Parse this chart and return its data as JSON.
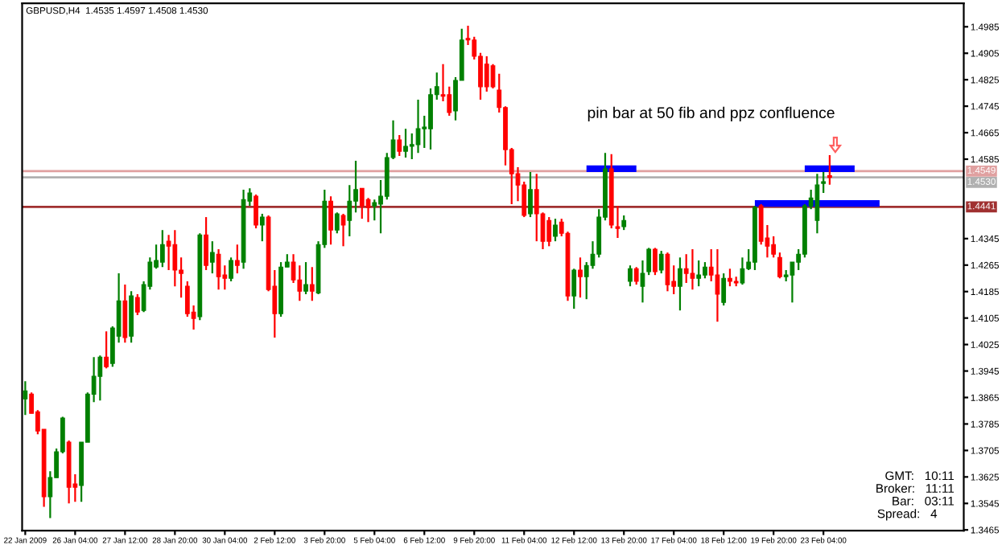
{
  "chart_data": {
    "type": "candlestick",
    "title": "GBPUSD,H4  1.4535 1.4597 1.4508 1.4530",
    "annotations": [
      "pin bar at 50 fib and ppz confluence",
      "GMT:   10:11",
      "Broker:   11:11",
      "Bar:   03:11",
      "Spread:   4     "
    ],
    "categories": [
      "22 Jan 2009",
      null,
      null,
      null,
      null,
      null,
      null,
      null,
      "26 Jan 04:00",
      null,
      null,
      null,
      null,
      null,
      null,
      null,
      "27 Jan 12:00",
      null,
      null,
      null,
      null,
      null,
      null,
      null,
      "28 Jan 20:00",
      null,
      null,
      null,
      null,
      null,
      null,
      null,
      "30 Jan 04:00",
      null,
      null,
      null,
      null,
      null,
      null,
      null,
      "2 Feb 12:00",
      null,
      null,
      null,
      null,
      null,
      null,
      null,
      "3 Feb 20:00",
      null,
      null,
      null,
      null,
      null,
      null,
      null,
      "5 Feb 04:00",
      null,
      null,
      null,
      null,
      null,
      null,
      null,
      "6 Feb 12:00",
      null,
      null,
      null,
      null,
      null,
      null,
      null,
      "9 Feb 20:00",
      null,
      null,
      null,
      null,
      null,
      null,
      null,
      "11 Feb 04:00",
      null,
      null,
      null,
      null,
      null,
      null,
      null,
      "12 Feb 12:00",
      null,
      null,
      null,
      null,
      null,
      null,
      null,
      "13 Feb 20:00",
      null,
      null,
      null,
      null,
      null,
      null,
      null,
      "17 Feb 04:00",
      null,
      null,
      null,
      null,
      null,
      null,
      null,
      "18 Feb 12:00",
      null,
      null,
      null,
      null,
      null,
      null,
      null,
      "19 Feb 20:00",
      null,
      null,
      null,
      null,
      null,
      null,
      null,
      "23 Feb 04:00",
      null,
      null,
      null,
      null,
      null,
      null,
      null,
      null,
      null,
      null,
      null,
      null,
      null,
      null,
      null,
      null,
      null,
      null,
      null,
      null,
      null,
      null
    ],
    "ohlc": [
      [
        1.3861,
        1.3914,
        1.3812,
        1.3885
      ],
      [
        1.3875,
        1.388,
        1.3817,
        1.3817
      ],
      [
        1.3822,
        1.3827,
        1.3754,
        1.3764
      ],
      [
        1.3769,
        1.3769,
        1.3535,
        1.3565
      ],
      [
        1.3565,
        1.3642,
        1.3501,
        1.3623
      ],
      [
        1.3623,
        1.3711,
        1.3623,
        1.3701
      ],
      [
        1.3701,
        1.3807,
        1.3696,
        1.3803
      ],
      [
        1.373,
        1.3735,
        1.3545,
        1.3594
      ],
      [
        1.3604,
        1.3633,
        1.355,
        1.3594
      ],
      [
        1.3599,
        1.373,
        1.355,
        1.373
      ],
      [
        1.373,
        1.388,
        1.373,
        1.3875
      ],
      [
        1.3875,
        1.3987,
        1.3851,
        1.3929
      ],
      [
        1.3929,
        1.3992,
        1.3856,
        1.3987
      ],
      [
        1.3987,
        1.4065,
        1.3953,
        1.3958
      ],
      [
        1.3968,
        1.408,
        1.3958,
        1.4075
      ],
      [
        1.405,
        1.424,
        1.4031,
        1.4157
      ],
      [
        1.4157,
        1.4206,
        1.4031,
        1.4046
      ],
      [
        1.405,
        1.4186,
        1.4031,
        1.4172
      ],
      [
        1.4167,
        1.4177,
        1.4114,
        1.4123
      ],
      [
        1.4128,
        1.4216,
        1.4123,
        1.4206
      ],
      [
        1.4201,
        1.4288,
        1.4191,
        1.4274
      ],
      [
        1.4259,
        1.4327,
        1.4254,
        1.4279
      ],
      [
        1.4274,
        1.4371,
        1.4259,
        1.4327
      ],
      [
        1.4337,
        1.4356,
        1.425,
        1.4322
      ],
      [
        1.4327,
        1.4371,
        1.4201,
        1.425
      ],
      [
        1.425,
        1.4288,
        1.4167,
        1.424
      ],
      [
        1.4201,
        1.4216,
        1.4109,
        1.4118
      ],
      [
        1.4123,
        1.4143,
        1.407,
        1.4104
      ],
      [
        1.4109,
        1.4361,
        1.4099,
        1.4356
      ],
      [
        1.4356,
        1.441,
        1.425,
        1.4264
      ],
      [
        1.4274,
        1.4337,
        1.424,
        1.4303
      ],
      [
        1.4298,
        1.4313,
        1.4191,
        1.423
      ],
      [
        1.4235,
        1.4264,
        1.4191,
        1.4225
      ],
      [
        1.4225,
        1.4288,
        1.4216,
        1.4279
      ],
      [
        1.4279,
        1.4327,
        1.424,
        1.4264
      ],
      [
        1.4274,
        1.4493,
        1.4254,
        1.4463
      ],
      [
        1.4458,
        1.4497,
        1.4444,
        1.4483
      ],
      [
        1.4473,
        1.4478,
        1.4376,
        1.4386
      ],
      [
        1.4386,
        1.442,
        1.4337,
        1.441
      ],
      [
        1.441,
        1.4415,
        1.4186,
        1.4191
      ],
      [
        1.4201,
        1.425,
        1.4046,
        1.4118
      ],
      [
        1.4118,
        1.4274,
        1.4109,
        1.4259
      ],
      [
        1.4259,
        1.4298,
        1.4259,
        1.4274
      ],
      [
        1.4274,
        1.4298,
        1.4211,
        1.422
      ],
      [
        1.422,
        1.4264,
        1.4157,
        1.4186
      ],
      [
        1.4186,
        1.4274,
        1.4177,
        1.4206
      ],
      [
        1.4206,
        1.4259,
        1.4157,
        1.4186
      ],
      [
        1.4181,
        1.4337,
        1.4177,
        1.4327
      ],
      [
        1.4327,
        1.4493,
        1.4317,
        1.4458
      ],
      [
        1.4458,
        1.4473,
        1.4327,
        1.4371
      ],
      [
        1.4371,
        1.4424,
        1.4361,
        1.442
      ],
      [
        1.4415,
        1.442,
        1.4322,
        1.4386
      ],
      [
        1.44,
        1.4507,
        1.4352,
        1.4458
      ],
      [
        1.4458,
        1.458,
        1.4424,
        1.4493
      ],
      [
        1.4497,
        1.4497,
        1.4405,
        1.4444
      ],
      [
        1.4463,
        1.4468,
        1.4395,
        1.4439
      ],
      [
        1.4444,
        1.4463,
        1.44,
        1.4454
      ],
      [
        1.4449,
        1.4522,
        1.4361,
        1.4473
      ],
      [
        1.4473,
        1.4604,
        1.4463,
        1.459
      ],
      [
        1.459,
        1.4702,
        1.4585,
        1.4643
      ],
      [
        1.4643,
        1.4658,
        1.4595,
        1.4609
      ],
      [
        1.4609,
        1.4677,
        1.459,
        1.4624
      ],
      [
        1.4624,
        1.4663,
        1.4585,
        1.4629
      ],
      [
        1.4629,
        1.4765,
        1.4604,
        1.4677
      ],
      [
        1.4677,
        1.4716,
        1.4619,
        1.4682
      ],
      [
        1.4677,
        1.4799,
        1.4614,
        1.478
      ],
      [
        1.478,
        1.4847,
        1.4765,
        1.4804
      ],
      [
        1.478,
        1.4872,
        1.476,
        1.4775
      ],
      [
        1.478,
        1.4804,
        1.4716,
        1.4726
      ],
      [
        1.4731,
        1.4833,
        1.4702,
        1.4823
      ],
      [
        1.4823,
        1.4979,
        1.4823,
        1.4945
      ],
      [
        1.495,
        1.4988,
        1.493,
        1.4945
      ],
      [
        1.4945,
        1.4955,
        1.4886,
        1.4896
      ],
      [
        1.4896,
        1.4906,
        1.4765,
        1.4804
      ],
      [
        1.4872,
        1.4896,
        1.4789,
        1.4804
      ],
      [
        1.4867,
        1.4872,
        1.4799,
        1.4804
      ],
      [
        1.4794,
        1.4843,
        1.4726,
        1.4741
      ],
      [
        1.4741,
        1.4745,
        1.4566,
        1.4614
      ],
      [
        1.4614,
        1.4619,
        1.4449,
        1.4541
      ],
      [
        1.4541,
        1.4561,
        1.4458,
        1.4507
      ],
      [
        1.4507,
        1.4517,
        1.441,
        1.4415
      ],
      [
        1.442,
        1.4546,
        1.441,
        1.4493
      ],
      [
        1.4493,
        1.4541,
        1.4337,
        1.442
      ],
      [
        1.442,
        1.4424,
        1.4313,
        1.4337
      ],
      [
        1.44,
        1.441,
        1.4322,
        1.4337
      ],
      [
        1.4352,
        1.4405,
        1.4337,
        1.4386
      ],
      [
        1.4395,
        1.4405,
        1.4352,
        1.4361
      ],
      [
        1.4361,
        1.4366,
        1.4157,
        1.4172
      ],
      [
        1.4172,
        1.4254,
        1.4133,
        1.425
      ],
      [
        1.425,
        1.4288,
        1.4167,
        1.423
      ],
      [
        1.423,
        1.4274,
        1.4162,
        1.4264
      ],
      [
        1.4264,
        1.4337,
        1.4254,
        1.4298
      ],
      [
        1.4298,
        1.4434,
        1.4288,
        1.441
      ],
      [
        1.441,
        1.4604,
        1.44,
        1.4556
      ],
      [
        1.4556,
        1.46,
        1.4376,
        1.4386
      ],
      [
        1.4381,
        1.4444,
        1.4347,
        1.4376
      ],
      [
        1.4381,
        1.4415,
        1.4371,
        1.44
      ],
      [
        1.4216,
        1.4264,
        1.4201,
        1.4254
      ],
      [
        1.4254,
        1.4259,
        1.4206,
        1.4216
      ],
      [
        1.4201,
        1.4279,
        1.4152,
        1.424
      ],
      [
        1.4245,
        1.4317,
        1.4235,
        1.4313
      ],
      [
        1.4313,
        1.4317,
        1.4235,
        1.4245
      ],
      [
        1.425,
        1.4308,
        1.424,
        1.4298
      ],
      [
        1.4298,
        1.4303,
        1.4186,
        1.4206
      ],
      [
        1.4216,
        1.4264,
        1.4177,
        1.4201
      ],
      [
        1.4201,
        1.4288,
        1.4128,
        1.4254
      ],
      [
        1.4254,
        1.4298,
        1.4211,
        1.424
      ],
      [
        1.424,
        1.4313,
        1.4191,
        1.4225
      ],
      [
        1.4225,
        1.4279,
        1.4201,
        1.4235
      ],
      [
        1.4235,
        1.4274,
        1.4225,
        1.4259
      ],
      [
        1.4259,
        1.4313,
        1.4216,
        1.4235
      ],
      [
        1.4235,
        1.4313,
        1.4094,
        1.4177
      ],
      [
        1.4152,
        1.424,
        1.4143,
        1.4225
      ],
      [
        1.4225,
        1.4254,
        1.4201,
        1.4216
      ],
      [
        1.4216,
        1.423,
        1.4201,
        1.4211
      ],
      [
        1.4211,
        1.4288,
        1.4206,
        1.4254
      ],
      [
        1.4254,
        1.4313,
        1.425,
        1.4274
      ],
      [
        1.4274,
        1.4444,
        1.425,
        1.4439
      ],
      [
        1.4444,
        1.4449,
        1.4327,
        1.4337
      ],
      [
        1.4347,
        1.4386,
        1.4288,
        1.4322
      ],
      [
        1.4327,
        1.4352,
        1.4288,
        1.4298
      ],
      [
        1.4288,
        1.4303,
        1.4225,
        1.423
      ],
      [
        1.423,
        1.425,
        1.4216,
        1.4235
      ],
      [
        1.4235,
        1.4274,
        1.4152,
        1.4274
      ],
      [
        1.4274,
        1.4313,
        1.425,
        1.4298
      ],
      [
        1.4298,
        1.4449,
        1.4288,
        1.4444
      ],
      [
        1.4444,
        1.4493,
        1.4434,
        1.4468
      ],
      [
        1.44,
        1.4541,
        1.4361,
        1.4507
      ],
      [
        1.4512,
        1.4546,
        1.4483,
        1.4517
      ],
      [
        1.4535,
        1.4597,
        1.4508,
        1.453
      ],
      null,
      null,
      null,
      null,
      null,
      null,
      null,
      null,
      null,
      null,
      null,
      null,
      null,
      null,
      null,
      null,
      null,
      null,
      null,
      null,
      null
    ],
    "colors": [
      "#008000",
      "#ff0000",
      "#ff0000",
      "#ff0000",
      "#008000",
      "#008000",
      "#008000",
      "#ff0000",
      "#ff0000",
      "#008000",
      "#008000",
      "#008000",
      "#008000",
      "#ff0000",
      "#008000",
      "#008000",
      "#ff0000",
      "#008000",
      "#ff0000",
      "#008000",
      "#008000",
      "#008000",
      "#008000",
      "#ff0000",
      "#ff0000",
      "#ff0000",
      "#ff0000",
      "#ff0000",
      "#008000",
      "#ff0000",
      "#008000",
      "#ff0000",
      "#ff0000",
      "#008000",
      "#ff0000",
      "#008000",
      "#008000",
      "#ff0000",
      "#008000",
      "#ff0000",
      "#ff0000",
      "#008000",
      "#008000",
      "#ff0000",
      "#ff0000",
      "#008000",
      "#ff0000",
      "#008000",
      "#008000",
      "#ff0000",
      "#008000",
      "#ff0000",
      "#008000",
      "#008000",
      "#ff0000",
      "#ff0000",
      "#008000",
      "#008000",
      "#008000",
      "#008000",
      "#ff0000",
      "#008000",
      "#008000",
      "#008000",
      "#008000",
      "#008000",
      "#008000",
      "#ff0000",
      "#ff0000",
      "#008000",
      "#008000",
      "#ff0000",
      "#ff0000",
      "#ff0000",
      "#ff0000",
      "#ff0000",
      "#ff0000",
      "#ff0000",
      "#ff0000",
      "#ff0000",
      "#ff0000",
      "#008000",
      "#ff0000",
      "#ff0000",
      "#ff0000",
      "#008000",
      "#ff0000",
      "#ff0000",
      "#008000",
      "#ff0000",
      "#008000",
      "#008000",
      "#008000",
      "#008000",
      "#ff0000",
      "#ff0000",
      "#008000",
      "#008000",
      "#ff0000",
      "#008000",
      "#008000",
      "#ff0000",
      "#008000",
      "#ff0000",
      "#ff0000",
      "#008000",
      "#ff0000",
      "#ff0000",
      "#008000",
      "#008000",
      "#ff0000",
      "#ff0000",
      "#008000",
      "#ff0000",
      "#ff0000",
      "#008000",
      "#008000",
      "#008000",
      "#ff0000",
      "#ff0000",
      "#ff0000",
      "#ff0000",
      "#008000",
      "#008000",
      "#008000",
      "#008000",
      "#008000",
      "#008000",
      "#008000",
      "#ff0000",
      null,
      null,
      null,
      null,
      null,
      null,
      null,
      null,
      null,
      null,
      null,
      null,
      null,
      null,
      null,
      null,
      null,
      null,
      null,
      null,
      null
    ],
    "series": [
      {
        "type": "line",
        "color": "#0000ff",
        "values": [
          null,
          null,
          null,
          null,
          null,
          null,
          null,
          null,
          null,
          null,
          null,
          null,
          null,
          null,
          null,
          null,
          null,
          null,
          null,
          null,
          null,
          null,
          null,
          null,
          null,
          null,
          null,
          null,
          null,
          null,
          null,
          null,
          null,
          null,
          null,
          null,
          null,
          null,
          null,
          null,
          null,
          null,
          null,
          null,
          null,
          null,
          null,
          null,
          null,
          null,
          null,
          null,
          null,
          null,
          null,
          null,
          null,
          null,
          null,
          null,
          null,
          null,
          null,
          null,
          null,
          null,
          null,
          null,
          null,
          null,
          null,
          null,
          null,
          null,
          null,
          null,
          null,
          null,
          null,
          null,
          null,
          null,
          null,
          null,
          null,
          null,
          null,
          null,
          null,
          null,
          1.4556,
          1.4556,
          1.4556,
          1.4556,
          1.4556,
          1.4556,
          1.4556,
          1.4556,
          1.4556,
          null,
          null,
          null,
          null,
          null,
          null,
          null,
          null,
          null,
          null,
          null,
          null,
          null,
          null,
          null,
          null,
          null,
          null,
          null,
          null,
          null,
          null,
          null,
          null,
          null,
          null,
          null,
          null,
          null,
          null,
          null,
          null,
          null,
          null,
          null,
          null,
          null,
          null,
          null,
          null,
          null,
          null,
          null,
          null,
          null,
          null,
          null,
          null,
          null,
          null,
          null,
          null
        ]
      },
      {
        "type": "line",
        "color": "#0000ff",
        "values": [
          null,
          null,
          null,
          null,
          null,
          null,
          null,
          null,
          null,
          null,
          null,
          null,
          null,
          null,
          null,
          null,
          null,
          null,
          null,
          null,
          null,
          null,
          null,
          null,
          null,
          null,
          null,
          null,
          null,
          null,
          null,
          null,
          null,
          null,
          null,
          null,
          null,
          null,
          null,
          null,
          null,
          null,
          null,
          null,
          null,
          null,
          null,
          null,
          null,
          null,
          null,
          null,
          null,
          null,
          null,
          null,
          null,
          null,
          null,
          null,
          null,
          null,
          null,
          null,
          null,
          null,
          null,
          null,
          null,
          null,
          null,
          null,
          null,
          null,
          null,
          null,
          null,
          null,
          null,
          null,
          null,
          null,
          null,
          null,
          null,
          null,
          null,
          null,
          null,
          null,
          null,
          null,
          null,
          null,
          null,
          null,
          null,
          null,
          null,
          null,
          null,
          null,
          null,
          null,
          null,
          null,
          null,
          null,
          null,
          null,
          null,
          null,
          null,
          null,
          null,
          null,
          null,
          null,
          null,
          null,
          null,
          null,
          null,
          null,
          null,
          1.4556,
          1.4556,
          1.4556,
          1.4556,
          1.4556,
          1.4556,
          1.4556,
          1.4556,
          1.4556,
          null,
          null,
          null,
          null,
          null,
          null,
          null,
          null,
          null,
          null,
          null,
          null,
          null,
          null,
          null,
          null,
          null
        ]
      },
      {
        "type": "line",
        "color": "#0000ff",
        "values": [
          null,
          null,
          null,
          null,
          null,
          null,
          null,
          null,
          null,
          null,
          null,
          null,
          null,
          null,
          null,
          null,
          null,
          null,
          null,
          null,
          null,
          null,
          null,
          null,
          null,
          null,
          null,
          null,
          null,
          null,
          null,
          null,
          null,
          null,
          null,
          null,
          null,
          null,
          null,
          null,
          null,
          null,
          null,
          null,
          null,
          null,
          null,
          null,
          null,
          null,
          null,
          null,
          null,
          null,
          null,
          null,
          null,
          null,
          null,
          null,
          null,
          null,
          null,
          null,
          null,
          null,
          null,
          null,
          null,
          null,
          null,
          null,
          null,
          null,
          null,
          null,
          null,
          null,
          null,
          null,
          null,
          null,
          null,
          null,
          null,
          null,
          null,
          null,
          null,
          null,
          null,
          null,
          null,
          null,
          null,
          null,
          null,
          null,
          null,
          null,
          null,
          null,
          null,
          null,
          null,
          null,
          null,
          null,
          null,
          null,
          null,
          null,
          null,
          null,
          null,
          null,
          null,
          1.4451,
          1.4451,
          1.4451,
          1.4451,
          1.4451,
          1.4451,
          1.4451,
          1.4451,
          1.4451,
          1.4451,
          1.4451,
          1.4451,
          1.4451,
          1.4451,
          1.4451,
          1.4451,
          1.4451,
          1.4451,
          1.4451,
          1.4451,
          1.4451,
          null,
          null,
          null,
          null,
          null,
          null,
          null,
          null,
          null,
          null,
          null,
          null,
          null
        ]
      }
    ],
    "ref_lines": [
      {
        "axis": "y",
        "value": 1.4549,
        "label": "1.4549",
        "color": "#e0a0a0",
        "line_style": "solid"
      },
      {
        "axis": "y",
        "value": 1.453,
        "label": "1.4530",
        "color": "#b0b0b0",
        "line_style": "solid"
      },
      {
        "axis": "y",
        "value": 1.4441,
        "label": "1.4441",
        "color": "#a03030",
        "line_style": "solid"
      }
    ],
    "ylim": [
      1.3463,
      1.5056
    ],
    "yticks": [
      1.4985,
      1.4905,
      1.4825,
      1.4745,
      1.4665,
      1.4585,
      1.4345,
      1.4265,
      1.4185,
      1.4105,
      1.4025,
      1.3945,
      1.3865,
      1.3785,
      1.3705,
      1.3625,
      1.3545,
      1.3465
    ],
    "grid": false,
    "legend": false
  }
}
